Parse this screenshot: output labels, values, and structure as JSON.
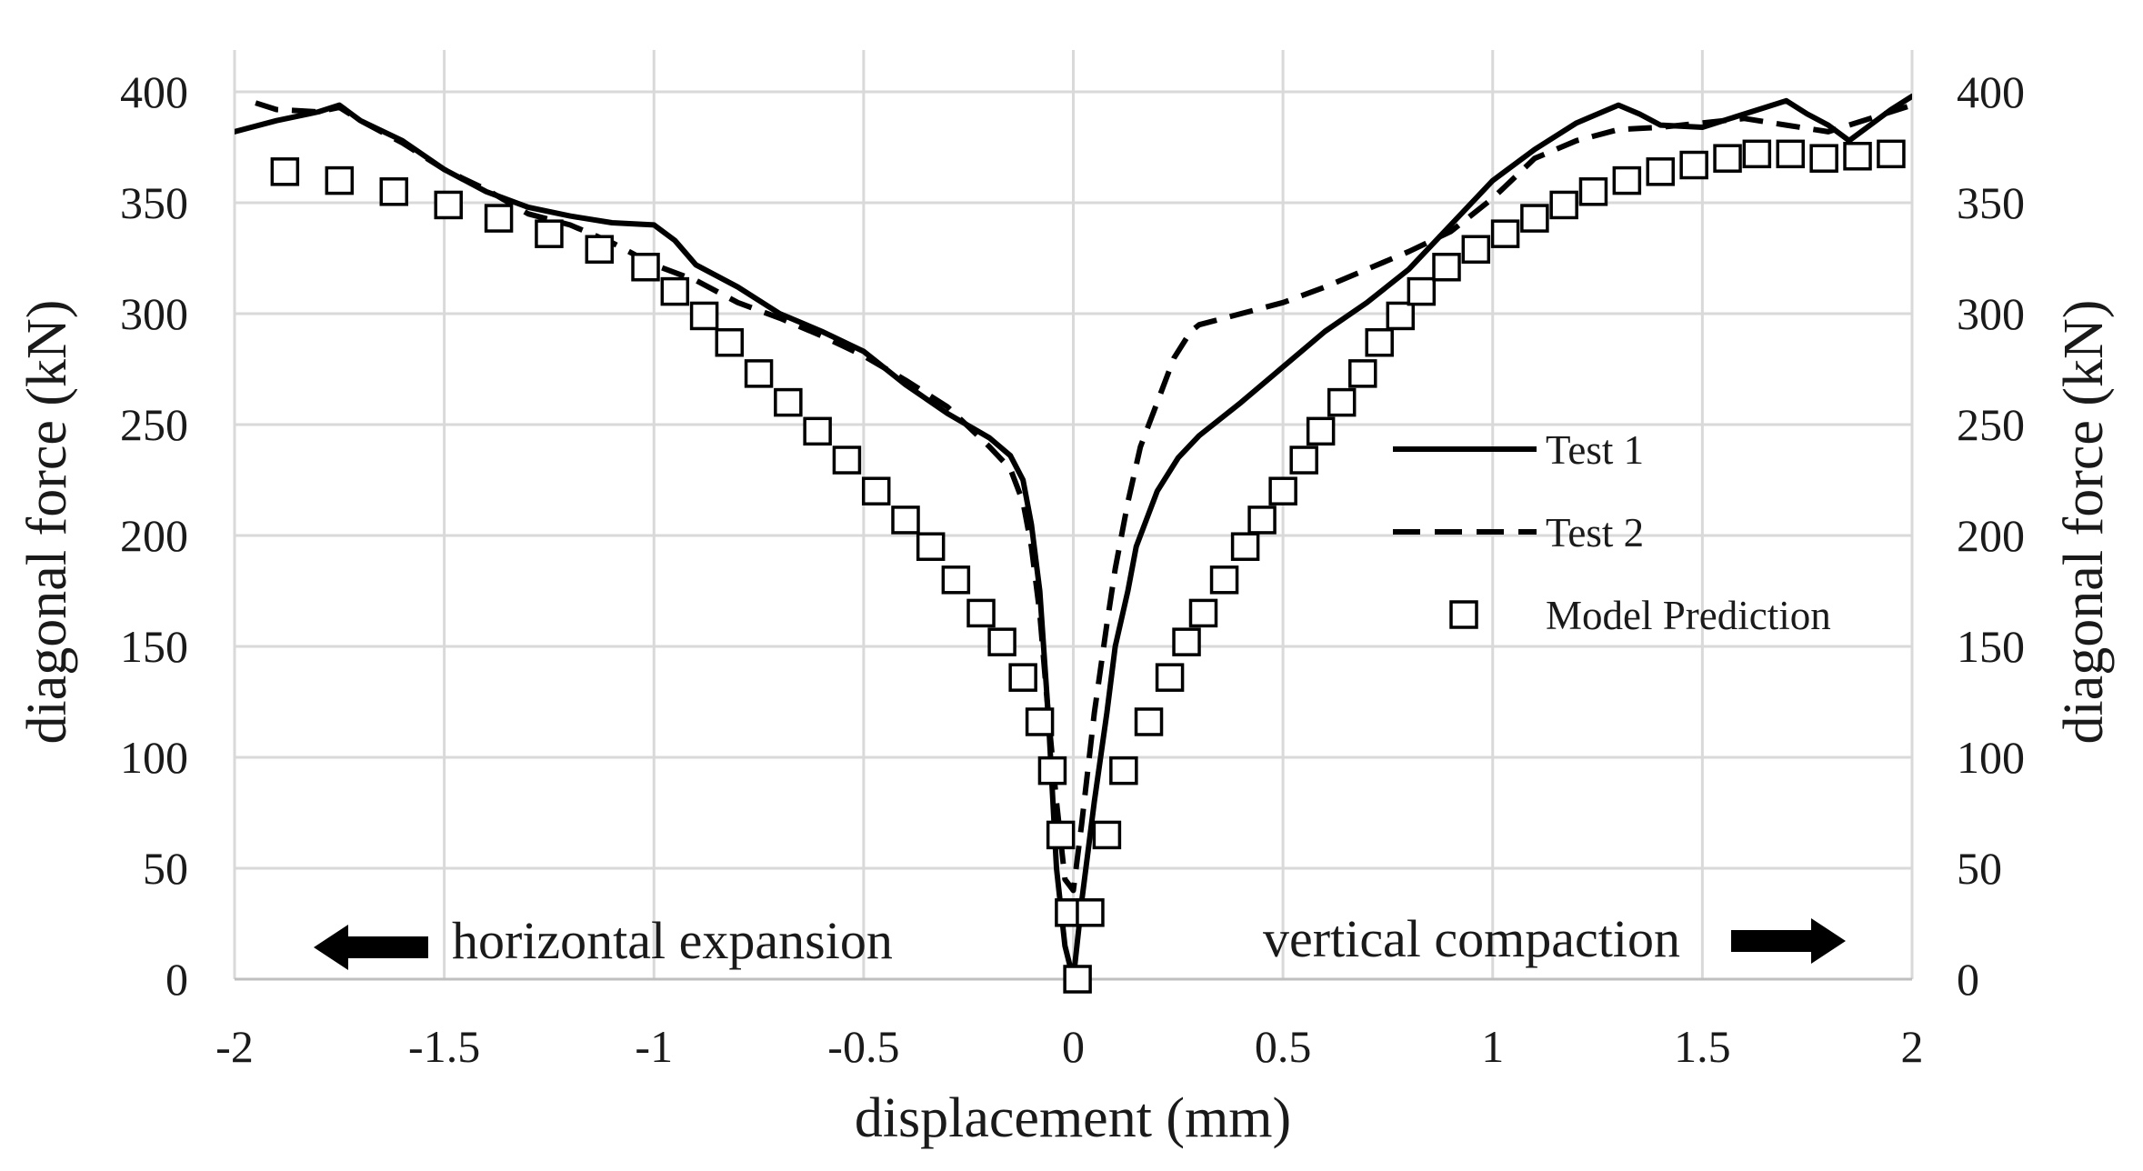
{
  "chart_data": {
    "type": "line",
    "title": "",
    "xlabel": "displacement (mm)",
    "ylabel": "diagonal force (kN)",
    "ylabel_right": "diagonal force (kN)",
    "xlim": [
      -2,
      2
    ],
    "ylim": [
      0,
      400
    ],
    "xticks": [
      -2,
      -1.5,
      -1,
      -0.5,
      0,
      0.5,
      1,
      1.5,
      2
    ],
    "xtick_labels": [
      "-2",
      "-1.5",
      "-1",
      "-0.5",
      "0",
      "0.5",
      "1",
      "1.5",
      "2"
    ],
    "yticks": [
      0,
      50,
      100,
      150,
      200,
      250,
      300,
      350,
      400
    ],
    "ytick_labels": [
      "0",
      "50",
      "100",
      "150",
      "200",
      "250",
      "300",
      "350",
      "400"
    ],
    "grid": true,
    "legend_position": "center-right",
    "annotations": {
      "left": "horizontal expansion",
      "right": "vertical compaction"
    },
    "series": [
      {
        "name": "Test 1",
        "style": "solid",
        "x": [
          -2.0,
          -1.9,
          -1.8,
          -1.75,
          -1.7,
          -1.6,
          -1.5,
          -1.4,
          -1.3,
          -1.2,
          -1.1,
          -1.0,
          -0.95,
          -0.9,
          -0.8,
          -0.7,
          -0.6,
          -0.5,
          -0.4,
          -0.3,
          -0.2,
          -0.15,
          -0.12,
          -0.1,
          -0.08,
          -0.06,
          -0.04,
          -0.02,
          0.0,
          0.02,
          0.05,
          0.08,
          0.1,
          0.13,
          0.15,
          0.2,
          0.25,
          0.3,
          0.4,
          0.5,
          0.6,
          0.7,
          0.8,
          0.9,
          1.0,
          1.1,
          1.2,
          1.3,
          1.35,
          1.4,
          1.5,
          1.6,
          1.65,
          1.7,
          1.75,
          1.8,
          1.85,
          1.9,
          1.95,
          2.0
        ],
        "y": [
          382,
          387,
          391,
          394,
          387,
          378,
          365,
          355,
          348,
          344,
          341,
          340,
          333,
          322,
          312,
          300,
          292,
          283,
          268,
          255,
          244,
          236,
          225,
          205,
          175,
          120,
          50,
          15,
          0,
          35,
          80,
          120,
          150,
          175,
          195,
          220,
          235,
          245,
          260,
          276,
          292,
          305,
          320,
          340,
          360,
          374,
          386,
          394,
          390,
          385,
          384,
          390,
          393,
          396,
          390,
          385,
          378,
          385,
          392,
          398
        ]
      },
      {
        "name": "Test 2",
        "style": "dashed",
        "x": [
          -1.95,
          -1.9,
          -1.8,
          -1.75,
          -1.7,
          -1.6,
          -1.5,
          -1.4,
          -1.3,
          -1.2,
          -1.1,
          -1.0,
          -0.9,
          -0.8,
          -0.7,
          -0.6,
          -0.5,
          -0.4,
          -0.3,
          -0.2,
          -0.15,
          -0.12,
          -0.1,
          -0.08,
          -0.06,
          -0.04,
          -0.02,
          0.0,
          0.02,
          0.05,
          0.08,
          0.1,
          0.13,
          0.16,
          0.2,
          0.24,
          0.28,
          0.3,
          0.4,
          0.5,
          0.6,
          0.7,
          0.8,
          0.9,
          1.0,
          1.1,
          1.2,
          1.3,
          1.4,
          1.5,
          1.6,
          1.7,
          1.8,
          1.9,
          2.0
        ],
        "y": [
          395,
          392,
          391,
          393,
          387,
          377,
          365,
          356,
          345,
          340,
          332,
          322,
          315,
          305,
          298,
          290,
          281,
          270,
          258,
          240,
          230,
          215,
          195,
          165,
          120,
          80,
          45,
          40,
          70,
          120,
          160,
          185,
          215,
          240,
          260,
          280,
          292,
          295,
          300,
          305,
          312,
          320,
          328,
          337,
          352,
          370,
          378,
          383,
          384,
          386,
          388,
          385,
          382,
          388,
          394
        ]
      },
      {
        "name": "Model Prediction",
        "style": "markers",
        "x": [
          -1.88,
          -1.75,
          -1.62,
          -1.49,
          -1.37,
          -1.25,
          -1.13,
          -1.02,
          -0.95,
          -0.88,
          -0.82,
          -0.75,
          -0.68,
          -0.61,
          -0.54,
          -0.47,
          -0.4,
          -0.34,
          -0.28,
          -0.22,
          -0.17,
          -0.12,
          -0.08,
          -0.05,
          -0.03,
          -0.01,
          0.01,
          0.04,
          0.08,
          0.12,
          0.18,
          0.23,
          0.27,
          0.31,
          0.36,
          0.41,
          0.45,
          0.5,
          0.55,
          0.59,
          0.64,
          0.69,
          0.73,
          0.78,
          0.83,
          0.89,
          0.96,
          1.03,
          1.1,
          1.17,
          1.24,
          1.32,
          1.4,
          1.48,
          1.56,
          1.63,
          1.71,
          1.79,
          1.87,
          1.95
        ],
        "y": [
          364,
          360,
          355,
          349,
          343,
          336,
          329,
          321,
          310,
          299,
          287,
          273,
          260,
          247,
          234,
          220,
          207,
          195,
          180,
          165,
          152,
          136,
          116,
          94,
          65,
          30,
          0,
          30,
          65,
          94,
          116,
          136,
          152,
          165,
          180,
          195,
          207,
          220,
          234,
          247,
          260,
          273,
          287,
          299,
          310,
          321,
          329,
          336,
          343,
          349,
          355,
          360,
          364,
          367,
          370,
          372,
          372,
          370,
          371,
          372
        ]
      }
    ]
  }
}
